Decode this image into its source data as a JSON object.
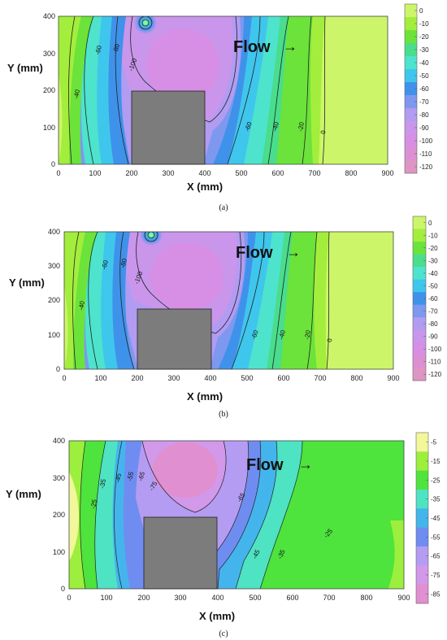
{
  "chart_data": [
    {
      "type": "heatmap",
      "caption": "(a)",
      "xlabel": "X (mm)",
      "ylabel": "Y (mm)",
      "xlim": [
        0,
        900
      ],
      "ylim": [
        0,
        400
      ],
      "x_ticks": [
        "0",
        "100",
        "200",
        "300",
        "400",
        "500",
        "600",
        "700",
        "800",
        "900"
      ],
      "y_ticks": [
        "0",
        "100",
        "200",
        "300",
        "400"
      ],
      "colorbar_ticks": [
        "0",
        "-10",
        "-20",
        "-30",
        "-40",
        "-50",
        "-60",
        "-70",
        "-80",
        "-90",
        "-100",
        "-110",
        "-120"
      ],
      "colorbar_colors": [
        "#ccf56a",
        "#a3ee3c",
        "#6be33a",
        "#49dd8c",
        "#4ee3cc",
        "#3fc6ec",
        "#3f92ea",
        "#7e98f0",
        "#b19cf2",
        "#c996ec",
        "#d68fe4",
        "#dc90d2",
        "#de95c4"
      ],
      "contour_lines": [
        {
          "level": "0",
          "x": [
            730,
            725,
            740,
            730,
            730
          ],
          "y": [
            0,
            100,
            200,
            300,
            400
          ]
        },
        {
          "level": "-20",
          "x": [
            660,
            650,
            660,
            670,
            680
          ],
          "y": [
            0,
            100,
            200,
            300,
            400
          ]
        },
        {
          "level": "-40",
          "x": [
            570,
            590,
            600,
            620,
            630
          ],
          "y": [
            0,
            100,
            200,
            300,
            400
          ]
        },
        {
          "level": "-60",
          "x": [
            460,
            510,
            540,
            540,
            530
          ],
          "y": [
            0,
            100,
            200,
            300,
            400
          ]
        },
        {
          "level": "-40",
          "x": [
            110,
            70,
            50,
            40,
            30
          ],
          "y": [
            0,
            100,
            200,
            300,
            400
          ]
        },
        {
          "level": "-60",
          "x": [
            180,
            150,
            130,
            110,
            80
          ],
          "y": [
            0,
            100,
            200,
            300,
            400
          ]
        },
        {
          "level": "-80",
          "x": [
            200,
            195,
            175,
            170,
            150
          ],
          "y": [
            0,
            100,
            200,
            300,
            400
          ]
        }
      ],
      "label_values": [
        "-60",
        "-80",
        "-100",
        "-40",
        "-60",
        "-40",
        "-20",
        "0"
      ],
      "obstacle": {
        "x": [
          200,
          400
        ],
        "y": [
          0,
          200
        ]
      },
      "annotation": "Flow",
      "annotation_arrow": "→"
    },
    {
      "type": "heatmap",
      "caption": "(b)",
      "xlabel": "X (mm)",
      "ylabel": "Y (mm)",
      "xlim": [
        0,
        900
      ],
      "ylim": [
        0,
        400
      ],
      "x_ticks": [
        "0",
        "100",
        "200",
        "300",
        "400",
        "500",
        "600",
        "700",
        "800",
        "900"
      ],
      "y_ticks": [
        "0",
        "100",
        "200",
        "300",
        "400"
      ],
      "colorbar_ticks": [
        "0",
        "-10",
        "-20",
        "-30",
        "-40",
        "-50",
        "-60",
        "-70",
        "-80",
        "-90",
        "-100",
        "-110",
        "-120"
      ],
      "colorbar_colors": [
        "#ccf56a",
        "#a3ee3c",
        "#6be33a",
        "#49dd8c",
        "#4ee3cc",
        "#3fc6ec",
        "#3f92ea",
        "#7e98f0",
        "#b19cf2",
        "#c996ec",
        "#d68fe4",
        "#dc90d2",
        "#de95c4"
      ],
      "contour_lines": [
        {
          "level": "0",
          "x": [
            725,
            725,
            735,
            725,
            725
          ],
          "y": [
            0,
            100,
            200,
            300,
            400
          ]
        },
        {
          "level": "-20",
          "x": [
            650,
            650,
            655,
            665,
            670
          ],
          "y": [
            0,
            100,
            200,
            300,
            400
          ]
        },
        {
          "level": "-40",
          "x": [
            560,
            585,
            600,
            610,
            620
          ],
          "y": [
            0,
            100,
            200,
            300,
            400
          ]
        },
        {
          "level": "-60",
          "x": [
            460,
            500,
            530,
            530,
            520
          ],
          "y": [
            0,
            100,
            200,
            300,
            400
          ]
        },
        {
          "level": "-40",
          "x": [
            100,
            60,
            40,
            30,
            20
          ],
          "y": [
            0,
            100,
            200,
            300,
            400
          ]
        },
        {
          "level": "-60",
          "x": [
            175,
            150,
            120,
            100,
            80
          ],
          "y": [
            0,
            100,
            200,
            300,
            400
          ]
        },
        {
          "level": "-80",
          "x": [
            200,
            190,
            170,
            160,
            150
          ],
          "y": [
            0,
            100,
            200,
            300,
            400
          ]
        }
      ],
      "label_values": [
        "-60",
        "-80",
        "-100",
        "-40",
        "-60",
        "-40",
        "-20",
        "0"
      ],
      "obstacle": {
        "x": [
          200,
          400
        ],
        "y": [
          0,
          175
        ]
      },
      "annotation": "Flow",
      "annotation_arrow": "→"
    },
    {
      "type": "heatmap",
      "caption": "(c)",
      "xlabel": "X (mm)",
      "ylabel": "Y (mm)",
      "xlim": [
        0,
        900
      ],
      "ylim": [
        0,
        400
      ],
      "x_ticks": [
        "0",
        "100",
        "200",
        "300",
        "400",
        "500",
        "600",
        "700",
        "800",
        "900"
      ],
      "y_ticks": [
        "0",
        "100",
        "200",
        "300",
        "400"
      ],
      "colorbar_ticks": [
        "-5",
        "-15",
        "-25",
        "-35",
        "-45",
        "-55",
        "-65",
        "-75",
        "-85"
      ],
      "colorbar_colors": [
        "#f2f79a",
        "#9cef3c",
        "#4ee33d",
        "#4ee3c2",
        "#44b5ec",
        "#6f8df0",
        "#b49cf2",
        "#d298e9",
        "#e08fd0"
      ],
      "contour_lines": [],
      "label_values": [
        "-25",
        "-35",
        "-45",
        "-55",
        "-65",
        "-75",
        "-65",
        "-45",
        "-35",
        "-25"
      ],
      "obstacle": {
        "x": [
          200,
          400
        ],
        "y": [
          0,
          195
        ]
      },
      "annotation": "Flow",
      "annotation_arrow": "→"
    }
  ]
}
